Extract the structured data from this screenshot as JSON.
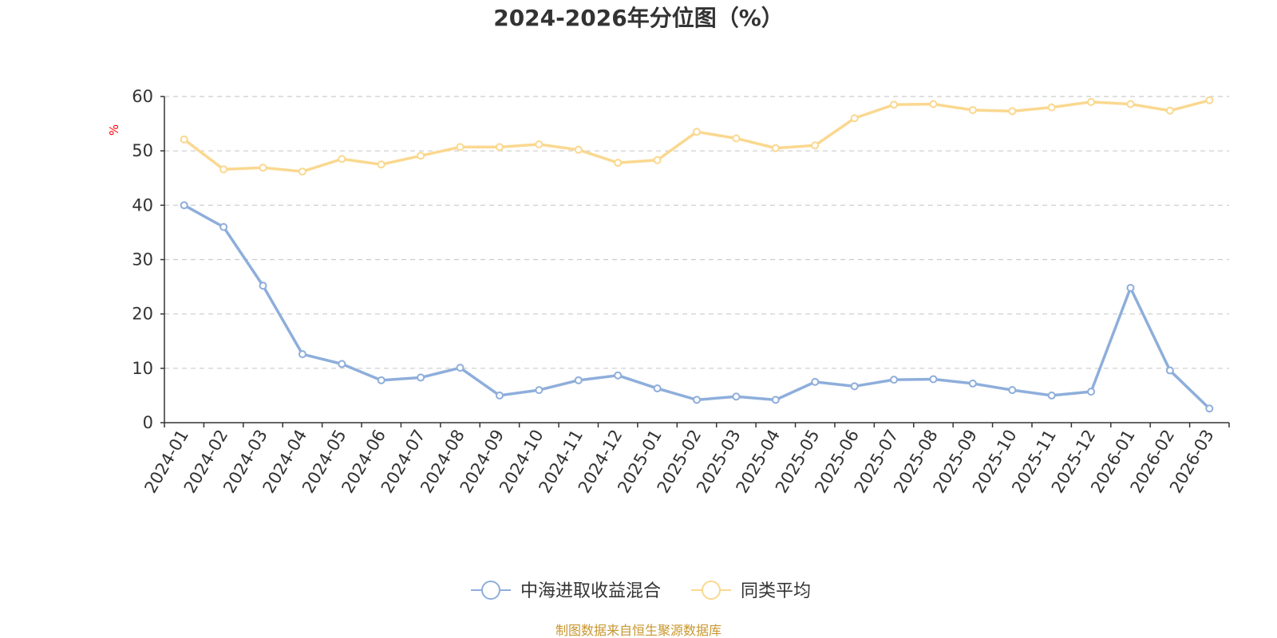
{
  "chart_data": {
    "type": "line",
    "title": "2024-2026年分位图（%）",
    "ylabel": "%",
    "xlabel": "",
    "ylim": [
      0,
      60
    ],
    "yticks": [
      0,
      10,
      20,
      30,
      40,
      50,
      60
    ],
    "grid": "horizontal dashed",
    "categories": [
      "2024-01",
      "2024-02",
      "2024-03",
      "2024-04",
      "2024-05",
      "2024-06",
      "2024-07",
      "2024-08",
      "2024-09",
      "2024-10",
      "2024-11",
      "2024-12",
      "2025-01",
      "2025-02",
      "2025-03",
      "2025-04",
      "2025-05",
      "2025-06",
      "2025-07",
      "2025-08",
      "2025-09",
      "2025-10",
      "2025-11",
      "2025-12",
      "2026-01",
      "2026-02",
      "2026-03"
    ],
    "series": [
      {
        "name": "中海进取收益混合",
        "color": "#8eaedb",
        "values": [
          40.0,
          36.0,
          25.2,
          12.6,
          10.8,
          7.8,
          8.3,
          10.1,
          5.0,
          6.0,
          7.8,
          8.7,
          6.3,
          4.2,
          4.8,
          4.2,
          7.5,
          6.7,
          7.9,
          8.0,
          7.2,
          6.0,
          5.0,
          5.7,
          24.8,
          9.6,
          2.6
        ]
      },
      {
        "name": "同类平均",
        "color": "#fad88f",
        "values": [
          52.1,
          46.6,
          46.9,
          46.2,
          48.5,
          47.5,
          49.1,
          50.7,
          50.7,
          51.2,
          50.2,
          47.8,
          48.3,
          53.5,
          52.3,
          50.5,
          51.0,
          56.0,
          58.5,
          58.6,
          57.5,
          57.3,
          58.0,
          59.0,
          58.6,
          57.4,
          59.3
        ]
      }
    ],
    "legend_position": "bottom-center",
    "source": "制图数据来自恒生聚源数据库"
  }
}
